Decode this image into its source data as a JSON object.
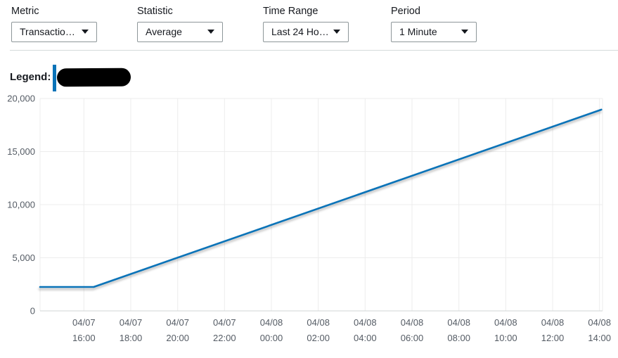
{
  "controls": [
    {
      "label": "Metric",
      "value": "Transactio…"
    },
    {
      "label": "Statistic",
      "value": "Average"
    },
    {
      "label": "Time Range",
      "value": "Last 24 Ho…"
    },
    {
      "label": "Period",
      "value": "1 Minute"
    }
  ],
  "legend": {
    "label": "Legend:",
    "marker_color": "#0a73b8",
    "series_name": "(redacted)",
    "redacted": true
  },
  "colors": {
    "line": "#0a73b8",
    "grid": "#ececec",
    "axis": "#d2d6d6",
    "tick_text": "#545b64",
    "label_text": "#16191f",
    "divider": "#d5dbdb",
    "dropdown_border": "#8d9699",
    "redaction": "#000000"
  },
  "chart_data": {
    "type": "line",
    "title": "",
    "xlabel": "",
    "ylabel": "",
    "grid": true,
    "legend_position": "top-left, above plot",
    "ylim": [
      0,
      20000
    ],
    "x_domain_hours": [
      14.13,
      38.13
    ],
    "x_domain_note": "hours since 04/07 00:00; window = last 24 hours (04/07 ~14:08 to 04/08 ~14:08)",
    "yticks": [
      {
        "v": 0,
        "label": "0"
      },
      {
        "v": 5000,
        "label": "5,000"
      },
      {
        "v": 10000,
        "label": "10,000"
      },
      {
        "v": 15000,
        "label": "15,000"
      },
      {
        "v": 20000,
        "label": "20,000"
      }
    ],
    "xticks": [
      {
        "t": 16,
        "date": "04/07",
        "time": "16:00"
      },
      {
        "t": 18,
        "date": "04/07",
        "time": "18:00"
      },
      {
        "t": 20,
        "date": "04/07",
        "time": "20:00"
      },
      {
        "t": 22,
        "date": "04/07",
        "time": "22:00"
      },
      {
        "t": 24,
        "date": "04/08",
        "time": "00:00"
      },
      {
        "t": 26,
        "date": "04/08",
        "time": "02:00"
      },
      {
        "t": 28,
        "date": "04/08",
        "time": "04:00"
      },
      {
        "t": 30,
        "date": "04/08",
        "time": "06:00"
      },
      {
        "t": 32,
        "date": "04/08",
        "time": "08:00"
      },
      {
        "t": 34,
        "date": "04/08",
        "time": "10:00"
      },
      {
        "t": 36,
        "date": "04/08",
        "time": "12:00"
      },
      {
        "t": 38,
        "date": "04/08",
        "time": "14:00"
      }
    ],
    "series": [
      {
        "name": "(series name redacted)",
        "color": "#0a73b8",
        "points": [
          {
            "t": 14.13,
            "v": 2250
          },
          {
            "t": 16.42,
            "v": 2250
          },
          {
            "t": 38.08,
            "v": 18950
          }
        ]
      }
    ],
    "values_at_xticks": [
      2250,
      3450,
      5000,
      6550,
      8100,
      9650,
      11200,
      12750,
      14300,
      15800,
      17350,
      18900
    ]
  }
}
